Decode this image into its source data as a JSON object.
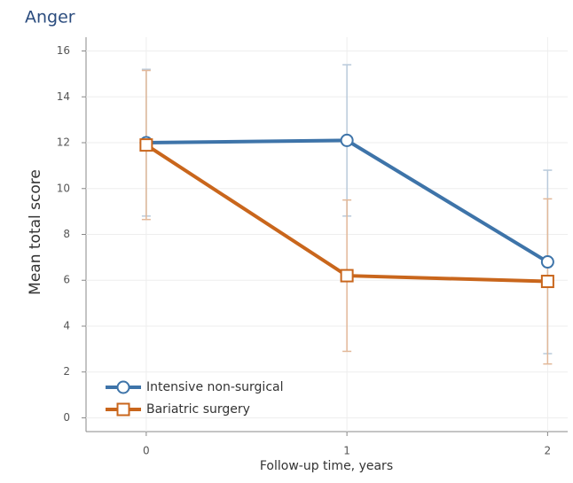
{
  "chart_data": {
    "type": "line",
    "title": "Anger",
    "x_label": "Follow-up time, years",
    "y_label": "Mean total score",
    "x": [
      0,
      1,
      2
    ],
    "series": [
      {
        "name": "Intensive non-surgical",
        "color": "#3e74a9",
        "error_color": "#b9cadb",
        "marker": "circle",
        "values": [
          12.0,
          12.1,
          6.8
        ],
        "errors": [
          3.2,
          3.3,
          4.0
        ]
      },
      {
        "name": "Bariatric surgery",
        "color": "#c9661c",
        "error_color": "#e2b899",
        "marker": "square",
        "values": [
          11.9,
          6.2,
          5.95
        ],
        "errors": [
          3.25,
          3.3,
          3.6
        ]
      }
    ],
    "xlim": [
      -0.3,
      2.1
    ],
    "xticks": [
      0,
      1,
      2
    ],
    "ylim": [
      -0.6,
      16.6
    ],
    "yticks": [
      0,
      2,
      4,
      6,
      8,
      10,
      12,
      14,
      16
    ],
    "grid": true,
    "legend": "lower left"
  }
}
